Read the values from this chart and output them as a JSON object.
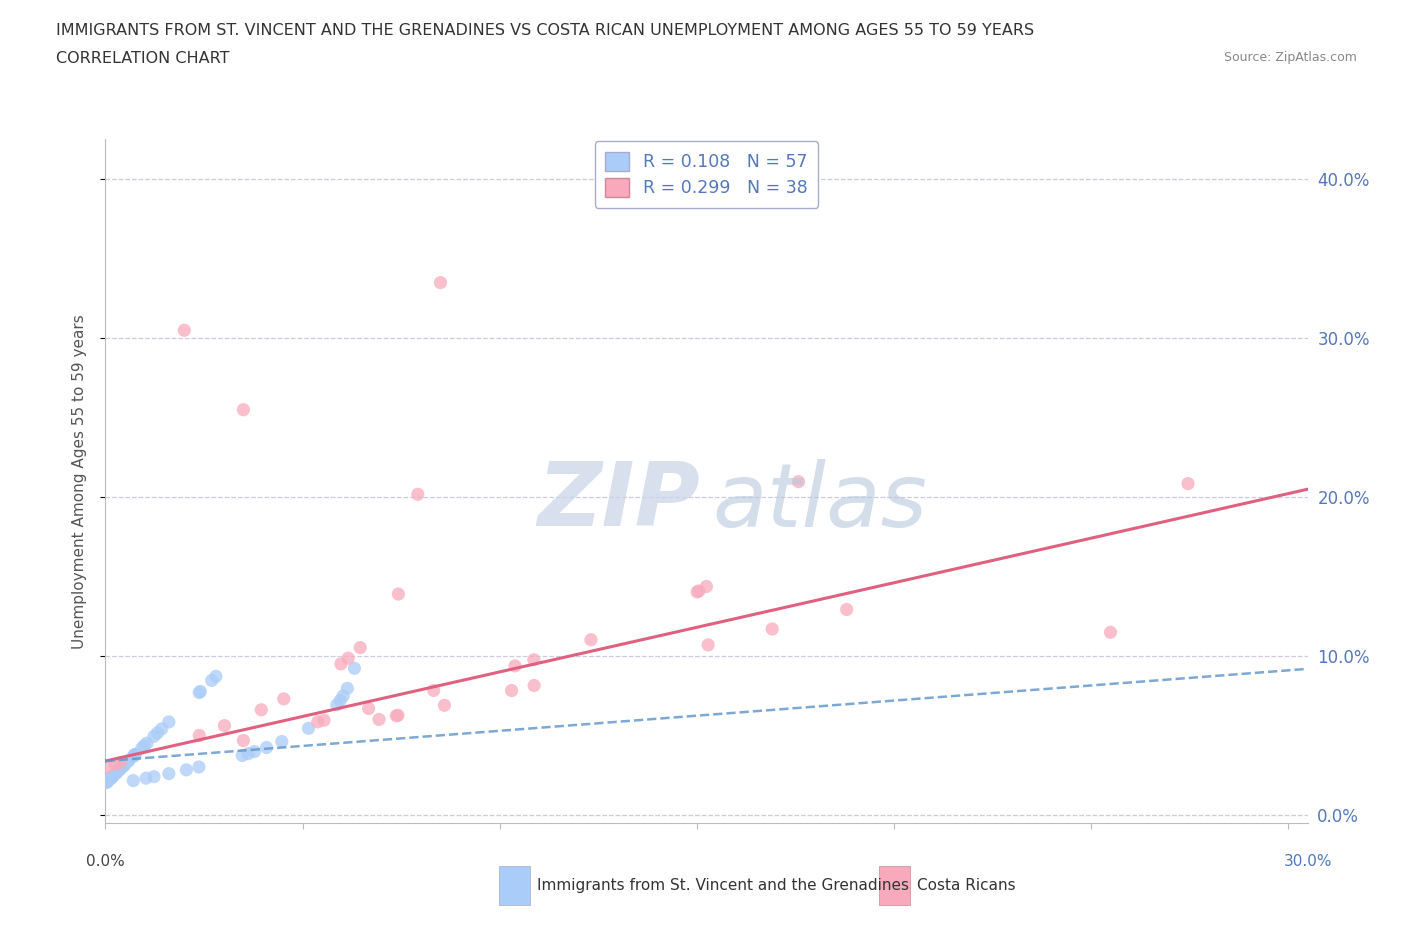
{
  "title_line1": "IMMIGRANTS FROM ST. VINCENT AND THE GRENADINES VS COSTA RICAN UNEMPLOYMENT AMONG AGES 55 TO 59 YEARS",
  "title_line2": "CORRELATION CHART",
  "source": "Source: ZipAtlas.com",
  "ylabel": "Unemployment Among Ages 55 to 59 years",
  "xlim": [
    0.0,
    0.305
  ],
  "ylim": [
    -0.005,
    0.425
  ],
  "ytick_vals": [
    0.0,
    0.1,
    0.2,
    0.3,
    0.4
  ],
  "ytick_labels": [
    "0.0%",
    "10.0%",
    "20.0%",
    "30.0%",
    "40.0%"
  ],
  "xtick_vals": [
    0.0,
    0.05,
    0.1,
    0.15,
    0.2,
    0.25,
    0.3
  ],
  "legend_r1": "R = 0.108   N = 57",
  "legend_r2": "R = 0.299   N = 38",
  "bottom_label1": "Immigrants from St. Vincent and the Grenadines",
  "bottom_label2": "Costa Ricans",
  "blue_color": "#aaccf8",
  "pink_color": "#f8aabc",
  "blue_line_color": "#6699cc",
  "pink_line_color": "#e06080",
  "grid_color": "#ccccdd",
  "right_tick_color": "#5577bb",
  "background_color": "#ffffff",
  "title_color": "#333333",
  "source_color": "#888888",
  "watermark_zip_color": "#c8d4e8",
  "watermark_atlas_color": "#b8c8dc"
}
